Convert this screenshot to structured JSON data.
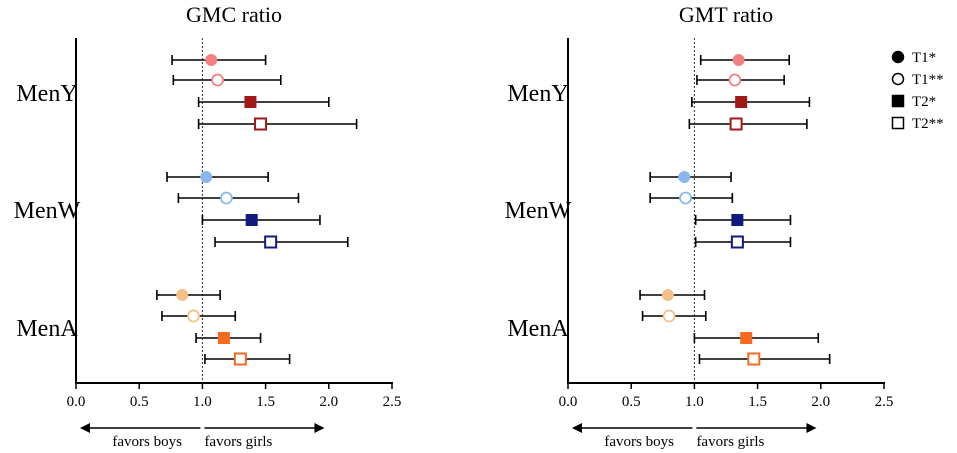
{
  "legend": [
    {
      "label": "T1*",
      "marker": "circle",
      "filled": true
    },
    {
      "label": "T1**",
      "marker": "circle",
      "filled": false
    },
    {
      "label": "T2*",
      "marker": "square",
      "filled": true
    },
    {
      "label": "T2**",
      "marker": "square",
      "filled": false
    }
  ],
  "favors": {
    "left": "favors boys",
    "right": "favors girls"
  },
  "colors": {
    "MenY": {
      "T1": "#f28080",
      "T2": "#a01818"
    },
    "MenW": {
      "T1": "#8ab8ee",
      "T2": "#121a80"
    },
    "MenA": {
      "T1": "#f5c088",
      "T2": "#f56a1e"
    }
  },
  "chart_data": [
    {
      "type": "forest",
      "title": "GMC ratio",
      "xlim": [
        0,
        2.5
      ],
      "xticks": [
        "0.0",
        "0.5",
        "1.0",
        "1.5",
        "2.0",
        "2.5"
      ],
      "reference_line": 1.0,
      "groups": [
        "MenY",
        "MenW",
        "MenA"
      ],
      "series": [
        "T1*",
        "T1**",
        "T2*",
        "T2**"
      ],
      "points": {
        "MenY": [
          {
            "series": "T1*",
            "estimate": 1.07,
            "lower": 0.76,
            "upper": 1.5
          },
          {
            "series": "T1**",
            "estimate": 1.12,
            "lower": 0.77,
            "upper": 1.62
          },
          {
            "series": "T2*",
            "estimate": 1.38,
            "lower": 0.97,
            "upper": 2.0
          },
          {
            "series": "T2**",
            "estimate": 1.46,
            "lower": 0.97,
            "upper": 2.22
          }
        ],
        "MenW": [
          {
            "series": "T1*",
            "estimate": 1.03,
            "lower": 0.72,
            "upper": 1.52
          },
          {
            "series": "T1**",
            "estimate": 1.19,
            "lower": 0.81,
            "upper": 1.76
          },
          {
            "series": "T2*",
            "estimate": 1.39,
            "lower": 1.0,
            "upper": 1.93
          },
          {
            "series": "T2**",
            "estimate": 1.54,
            "lower": 1.1,
            "upper": 2.15
          }
        ],
        "MenA": [
          {
            "series": "T1*",
            "estimate": 0.84,
            "lower": 0.64,
            "upper": 1.14
          },
          {
            "series": "T1**",
            "estimate": 0.93,
            "lower": 0.68,
            "upper": 1.26
          },
          {
            "series": "T2*",
            "estimate": 1.17,
            "lower": 0.95,
            "upper": 1.46
          },
          {
            "series": "T2**",
            "estimate": 1.3,
            "lower": 1.02,
            "upper": 1.69
          }
        ]
      }
    },
    {
      "type": "forest",
      "title": "GMT ratio",
      "xlim": [
        0,
        2.5
      ],
      "xticks": [
        "0.0",
        "0.5",
        "1.0",
        "1.5",
        "2.0",
        "2.5"
      ],
      "reference_line": 1.0,
      "groups": [
        "MenY",
        "MenW",
        "MenA"
      ],
      "series": [
        "T1*",
        "T1**",
        "T2*",
        "T2**"
      ],
      "points": {
        "MenY": [
          {
            "series": "T1*",
            "estimate": 1.35,
            "lower": 1.05,
            "upper": 1.75
          },
          {
            "series": "T1**",
            "estimate": 1.32,
            "lower": 1.02,
            "upper": 1.71
          },
          {
            "series": "T2*",
            "estimate": 1.37,
            "lower": 0.98,
            "upper": 1.91
          },
          {
            "series": "T2**",
            "estimate": 1.33,
            "lower": 0.96,
            "upper": 1.89
          }
        ],
        "MenW": [
          {
            "series": "T1*",
            "estimate": 0.92,
            "lower": 0.65,
            "upper": 1.29
          },
          {
            "series": "T1**",
            "estimate": 0.93,
            "lower": 0.65,
            "upper": 1.3
          },
          {
            "series": "T2*",
            "estimate": 1.34,
            "lower": 1.01,
            "upper": 1.76
          },
          {
            "series": "T2**",
            "estimate": 1.34,
            "lower": 1.01,
            "upper": 1.76
          }
        ],
        "MenA": [
          {
            "series": "T1*",
            "estimate": 0.79,
            "lower": 0.57,
            "upper": 1.08
          },
          {
            "series": "T1**",
            "estimate": 0.8,
            "lower": 0.59,
            "upper": 1.09
          },
          {
            "series": "T2*",
            "estimate": 1.41,
            "lower": 1.0,
            "upper": 1.98
          },
          {
            "series": "T2**",
            "estimate": 1.47,
            "lower": 1.04,
            "upper": 2.07
          }
        ]
      }
    }
  ]
}
